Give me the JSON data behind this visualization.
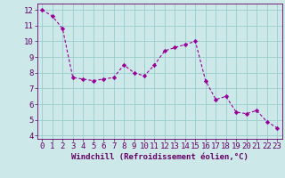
{
  "x": [
    0,
    1,
    2,
    3,
    4,
    5,
    6,
    7,
    8,
    9,
    10,
    11,
    12,
    13,
    14,
    15,
    16,
    17,
    18,
    19,
    20,
    21,
    22,
    23
  ],
  "y": [
    12.0,
    11.6,
    10.8,
    7.7,
    7.6,
    7.5,
    7.6,
    7.7,
    8.5,
    8.0,
    7.8,
    8.5,
    9.4,
    9.6,
    9.8,
    10.0,
    7.5,
    6.3,
    6.5,
    5.5,
    5.4,
    5.6,
    4.9,
    4.5
  ],
  "line_color": "#990099",
  "marker": "D",
  "marker_size": 2.2,
  "bg_color": "#cce8e8",
  "grid_color": "#99cccc",
  "xlabel": "Windchill (Refroidissement éolien,°C)",
  "ylim": [
    3.8,
    12.4
  ],
  "xlim": [
    -0.5,
    23.5
  ],
  "yticks": [
    4,
    5,
    6,
    7,
    8,
    9,
    10,
    11,
    12
  ],
  "xticks": [
    0,
    1,
    2,
    3,
    4,
    5,
    6,
    7,
    8,
    9,
    10,
    11,
    12,
    13,
    14,
    15,
    16,
    17,
    18,
    19,
    20,
    21,
    22,
    23
  ],
  "xlabel_fontsize": 6.5,
  "tick_fontsize": 6.5,
  "spine_color": "#660066",
  "label_color": "#660066"
}
